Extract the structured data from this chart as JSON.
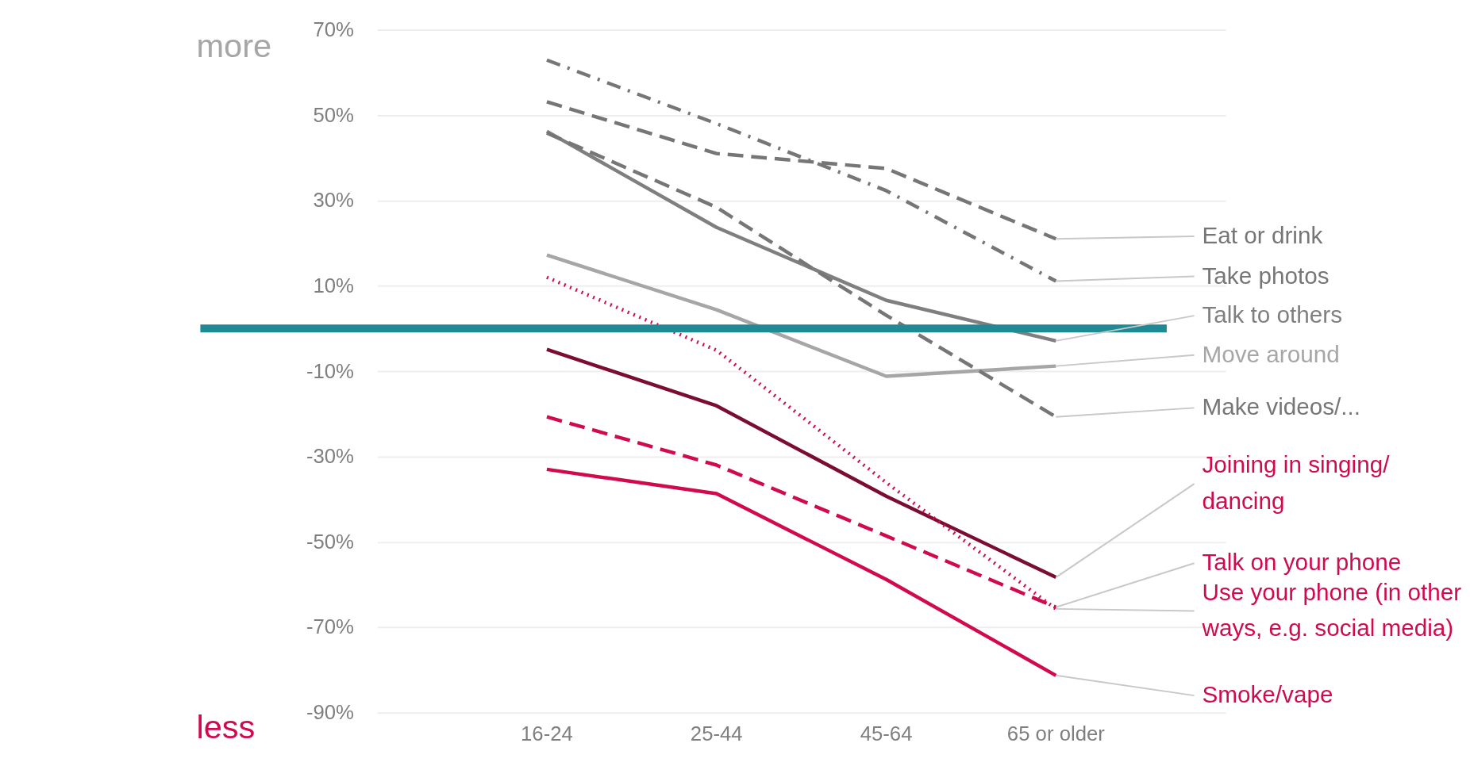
{
  "chart_data": {
    "type": "line",
    "categories": [
      "16-24",
      "25-44",
      "45-64",
      "65 or older"
    ],
    "series": [
      {
        "name": "Eat or drink",
        "color": "#767676",
        "line_style": "dashed",
        "values": [
          53.1,
          41,
          37.5,
          21
        ]
      },
      {
        "name": "Take photos",
        "color": "#767676",
        "line_style": "dashdot",
        "values": [
          62.9,
          48,
          32.3,
          11.1
        ]
      },
      {
        "name": "Talk to others",
        "color": "#7f7f7f",
        "line_style": "solid",
        "values": [
          46.2,
          23.7,
          6.6,
          -2.9
        ]
      },
      {
        "name": "Move around",
        "color": "#a6a6a6",
        "line_style": "solid",
        "values": [
          17.2,
          4.4,
          -11.2,
          -8.8
        ]
      },
      {
        "name": "Make videos/...",
        "color": "#767676",
        "line_style": "dashed",
        "values": [
          45.8,
          28.4,
          3.1,
          -20.7
        ]
      },
      {
        "name": "Joining in singing/ dancing",
        "color": "#7b0c32",
        "line_style": "solid",
        "values": [
          -4.9,
          -18.1,
          -39.3,
          -58.3
        ]
      },
      {
        "name": "Talk on your phone",
        "color": "#d10a4f",
        "line_style": "dashed",
        "values": [
          -20.7,
          -32,
          -48.6,
          -65.3
        ]
      },
      {
        "name": "Use your phone (in other ways, e.g. social media)",
        "color": "#d10a4f",
        "line_style": "dotted",
        "values": [
          12,
          -5.1,
          -36.1,
          -65.7
        ]
      },
      {
        "name": "Smoke/vape",
        "color": "#d10a4f",
        "line_style": "solid",
        "values": [
          -33,
          -38.7,
          -58.8,
          -81.3
        ]
      }
    ],
    "ylim": [
      -90,
      70
    ],
    "yticks": [
      {
        "value": 70,
        "label": "70%"
      },
      {
        "value": 50,
        "label": "50%"
      },
      {
        "value": 30,
        "label": "30%"
      },
      {
        "value": 10,
        "label": "10%"
      },
      {
        "value": -10,
        "label": "-10%"
      },
      {
        "value": -30,
        "label": "-30%"
      },
      {
        "value": -50,
        "label": "-50%"
      },
      {
        "value": -70,
        "label": "-70%"
      },
      {
        "value": -90,
        "label": "-90%"
      }
    ],
    "ref_lines": [
      {
        "axis": "y",
        "value": 0,
        "color": "#1f8a94"
      }
    ],
    "annotations": [
      "more",
      "less"
    ],
    "grid": "y",
    "marker": "none"
  }
}
